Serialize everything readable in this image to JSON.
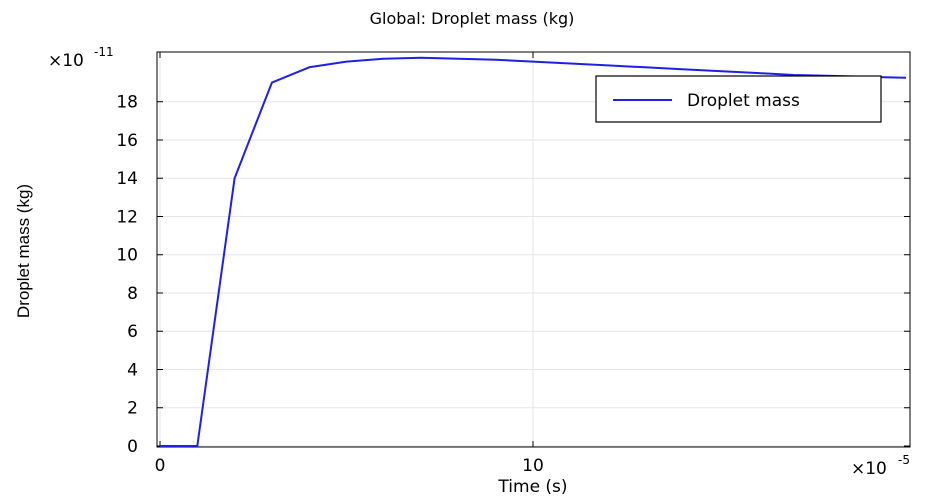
{
  "chart_data": {
    "type": "line",
    "title": "Global: Droplet mass (kg)",
    "xlabel": "Time (s)",
    "ylabel": "Droplet mass (kg)",
    "x_multiplier": {
      "base": "×10",
      "exp": "-5"
    },
    "y_multiplier": {
      "base": "×10",
      "exp": "-11"
    },
    "xlim": [
      0,
      20
    ],
    "ylim": [
      0,
      20.6
    ],
    "x_ticks": [
      0,
      10
    ],
    "y_ticks": [
      0,
      2,
      4,
      6,
      8,
      10,
      12,
      14,
      16,
      18
    ],
    "grid": true,
    "legend_position": "top-right",
    "series": [
      {
        "name": "Droplet mass",
        "color": "#1f1fe6",
        "x": [
          0,
          1,
          2,
          3,
          4,
          5,
          6,
          7,
          8,
          9,
          10,
          11,
          12,
          13,
          14,
          15,
          16,
          17,
          18,
          19,
          20
        ],
        "y": [
          0,
          0,
          14.0,
          19.0,
          19.8,
          20.1,
          20.25,
          20.3,
          20.25,
          20.2,
          20.1,
          20.0,
          19.9,
          19.8,
          19.7,
          19.6,
          19.5,
          19.4,
          19.35,
          19.3,
          19.25
        ]
      }
    ]
  }
}
